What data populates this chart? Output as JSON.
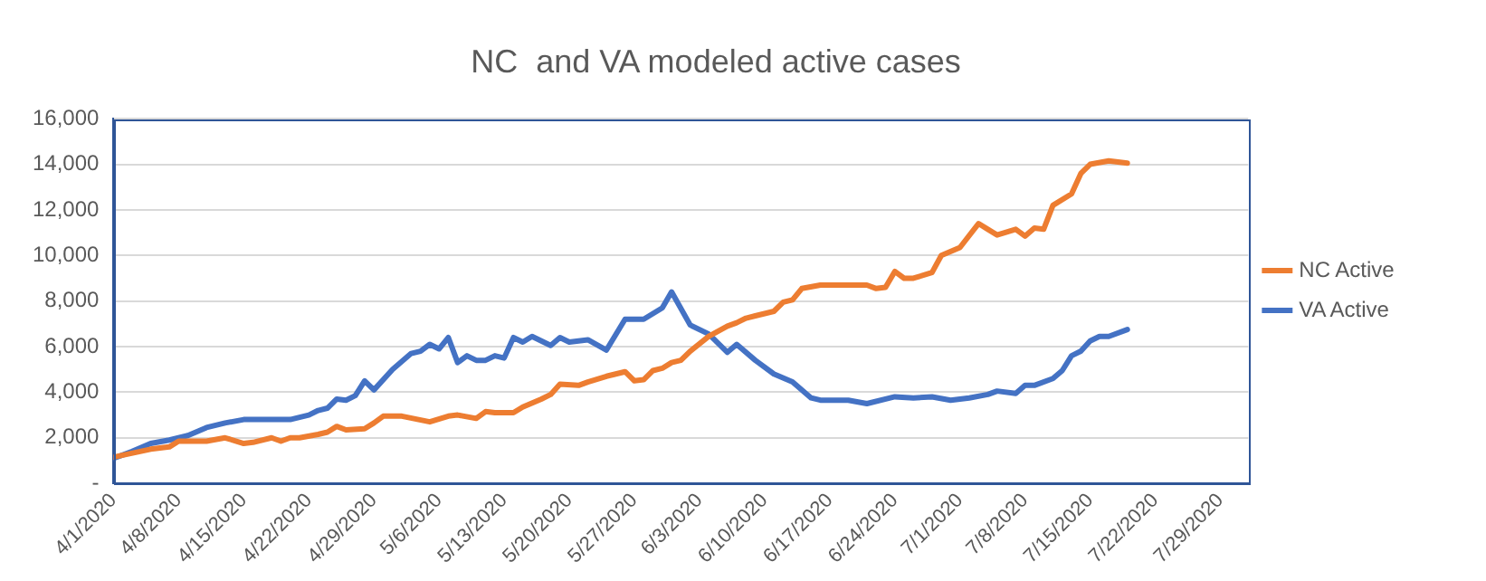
{
  "chart_data": {
    "type": "line",
    "title": "NC  and VA modeled active cases",
    "legend": "right",
    "grid": "y",
    "marker": "none",
    "line_style": "solid",
    "xlim": [
      "2020-04-01",
      "2020-08-01"
    ],
    "xticks": [
      {
        "value": "2020-04-01",
        "label": "4/1/2020"
      },
      {
        "value": "2020-04-08",
        "label": "4/8/2020"
      },
      {
        "value": "2020-04-15",
        "label": "4/15/2020"
      },
      {
        "value": "2020-04-22",
        "label": "4/22/2020"
      },
      {
        "value": "2020-04-29",
        "label": "4/29/2020"
      },
      {
        "value": "2020-05-06",
        "label": "5/6/2020"
      },
      {
        "value": "2020-05-13",
        "label": "5/13/2020"
      },
      {
        "value": "2020-05-20",
        "label": "5/20/2020"
      },
      {
        "value": "2020-05-27",
        "label": "5/27/2020"
      },
      {
        "value": "2020-06-03",
        "label": "6/3/2020"
      },
      {
        "value": "2020-06-10",
        "label": "6/10/2020"
      },
      {
        "value": "2020-06-17",
        "label": "6/17/2020"
      },
      {
        "value": "2020-06-24",
        "label": "6/24/2020"
      },
      {
        "value": "2020-07-01",
        "label": "7/1/2020"
      },
      {
        "value": "2020-07-08",
        "label": "7/8/2020"
      },
      {
        "value": "2020-07-15",
        "label": "7/15/2020"
      },
      {
        "value": "2020-07-22",
        "label": "7/22/2020"
      },
      {
        "value": "2020-07-29",
        "label": "7/29/2020"
      }
    ],
    "ylim": [
      0,
      16000
    ],
    "yticks": [
      {
        "value": 0,
        "label": "-"
      },
      {
        "value": 2000,
        "label": "2,000"
      },
      {
        "value": 4000,
        "label": "4,000"
      },
      {
        "value": 6000,
        "label": "6,000"
      },
      {
        "value": 8000,
        "label": "8,000"
      },
      {
        "value": 10000,
        "label": "10,000"
      },
      {
        "value": 12000,
        "label": "12,000"
      },
      {
        "value": 14000,
        "label": "14,000"
      },
      {
        "value": 16000,
        "label": "16,000"
      }
    ],
    "series": [
      {
        "name": "NC Active",
        "color": "#ed7d31",
        "x": [
          "2020-04-01",
          "2020-04-05",
          "2020-04-07",
          "2020-04-08",
          "2020-04-11",
          "2020-04-13",
          "2020-04-15",
          "2020-04-16",
          "2020-04-18",
          "2020-04-19",
          "2020-04-20",
          "2020-04-21",
          "2020-04-23",
          "2020-04-24",
          "2020-04-25",
          "2020-04-26",
          "2020-04-28",
          "2020-04-29",
          "2020-04-30",
          "2020-05-02",
          "2020-05-05",
          "2020-05-07",
          "2020-05-08",
          "2020-05-10",
          "2020-05-11",
          "2020-05-12",
          "2020-05-14",
          "2020-05-15",
          "2020-05-17",
          "2020-05-18",
          "2020-05-19",
          "2020-05-21",
          "2020-05-22",
          "2020-05-24",
          "2020-05-26",
          "2020-05-27",
          "2020-05-28",
          "2020-05-29",
          "2020-05-30",
          "2020-05-31",
          "2020-06-01",
          "2020-06-02",
          "2020-06-04",
          "2020-06-06",
          "2020-06-07",
          "2020-06-08",
          "2020-06-09",
          "2020-06-11",
          "2020-06-12",
          "2020-06-13",
          "2020-06-14",
          "2020-06-16",
          "2020-06-19",
          "2020-06-21",
          "2020-06-22",
          "2020-06-23",
          "2020-06-24",
          "2020-06-25",
          "2020-06-26",
          "2020-06-28",
          "2020-06-29",
          "2020-07-01",
          "2020-07-03",
          "2020-07-04",
          "2020-07-05",
          "2020-07-07",
          "2020-07-08",
          "2020-07-09",
          "2020-07-10",
          "2020-07-11",
          "2020-07-13",
          "2020-07-14",
          "2020-07-15",
          "2020-07-17",
          "2020-07-19"
        ],
        "values": [
          1150,
          1500,
          1600,
          1850,
          1850,
          2000,
          1750,
          1800,
          2000,
          1850,
          2000,
          2000,
          2150,
          2250,
          2500,
          2350,
          2400,
          2650,
          2950,
          2950,
          2700,
          2950,
          3000,
          2850,
          3150,
          3100,
          3100,
          3350,
          3700,
          3900,
          4350,
          4300,
          4450,
          4700,
          4900,
          4500,
          4550,
          4950,
          5050,
          5300,
          5400,
          5800,
          6450,
          6900,
          7050,
          7250,
          7350,
          7550,
          7950,
          8050,
          8550,
          8700,
          8700,
          8700,
          8550,
          8600,
          9300,
          9000,
          9000,
          9250,
          10000,
          10350,
          11400,
          11150,
          10900,
          11150,
          10850,
          11200,
          11150,
          12200,
          12700,
          13600,
          14000,
          14150,
          14050
        ]
      },
      {
        "name": "VA Active",
        "color": "#4472c4",
        "x": [
          "2020-04-01",
          "2020-04-03",
          "2020-04-05",
          "2020-04-07",
          "2020-04-09",
          "2020-04-11",
          "2020-04-13",
          "2020-04-15",
          "2020-04-18",
          "2020-04-20",
          "2020-04-22",
          "2020-04-23",
          "2020-04-24",
          "2020-04-25",
          "2020-04-26",
          "2020-04-27",
          "2020-04-28",
          "2020-04-29",
          "2020-05-01",
          "2020-05-03",
          "2020-05-04",
          "2020-05-05",
          "2020-05-06",
          "2020-05-07",
          "2020-05-08",
          "2020-05-09",
          "2020-05-10",
          "2020-05-11",
          "2020-05-12",
          "2020-05-13",
          "2020-05-14",
          "2020-05-15",
          "2020-05-16",
          "2020-05-18",
          "2020-05-19",
          "2020-05-20",
          "2020-05-22",
          "2020-05-24",
          "2020-05-26",
          "2020-05-28",
          "2020-05-30",
          "2020-05-31",
          "2020-06-02",
          "2020-06-04",
          "2020-06-06",
          "2020-06-07",
          "2020-06-09",
          "2020-06-11",
          "2020-06-13",
          "2020-06-15",
          "2020-06-16",
          "2020-06-19",
          "2020-06-21",
          "2020-06-24",
          "2020-06-26",
          "2020-06-28",
          "2020-06-30",
          "2020-07-02",
          "2020-07-04",
          "2020-07-05",
          "2020-07-07",
          "2020-07-08",
          "2020-07-09",
          "2020-07-11",
          "2020-07-12",
          "2020-07-13",
          "2020-07-14",
          "2020-07-15",
          "2020-07-16",
          "2020-07-17",
          "2020-07-19"
        ],
        "values": [
          1100,
          1400,
          1750,
          1900,
          2100,
          2450,
          2650,
          2800,
          2800,
          2800,
          3000,
          3200,
          3300,
          3700,
          3650,
          3850,
          4500,
          4100,
          5000,
          5700,
          5800,
          6100,
          5900,
          6400,
          5300,
          5600,
          5400,
          5400,
          5600,
          5500,
          6400,
          6200,
          6450,
          6050,
          6400,
          6200,
          6300,
          5850,
          7200,
          7200,
          7700,
          8400,
          6950,
          6550,
          5750,
          6100,
          5400,
          4800,
          4450,
          3750,
          3650,
          3650,
          3500,
          3800,
          3750,
          3800,
          3650,
          3750,
          3900,
          4050,
          3950,
          4300,
          4300,
          4600,
          4950,
          5600,
          5800,
          6250,
          6450,
          6450,
          6750
        ]
      }
    ]
  }
}
